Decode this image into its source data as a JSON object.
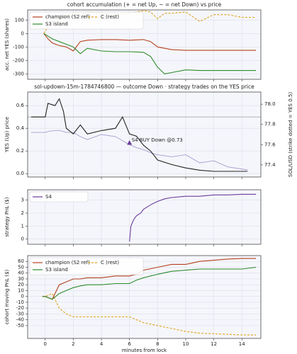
{
  "chart_data": [
    {
      "type": "line",
      "title": "cohort accumulation (+ = net Up, − = net Down) vs price",
      "ylabel": "acc. net YES (shares)",
      "x": [
        -0.1,
        0.2,
        0.5,
        1,
        1.5,
        2,
        2.5,
        3,
        4,
        5,
        6,
        7,
        7.5,
        8,
        8.5,
        9,
        10,
        11,
        12,
        13,
        14,
        15
      ],
      "series": [
        {
          "name": "champion (S2 ref)",
          "color": "#b5401f",
          "linestyle": "solid",
          "values": [
            0,
            -40,
            -70,
            -90,
            -100,
            -130,
            -60,
            -50,
            -45,
            -45,
            -50,
            -45,
            -60,
            -100,
            -110,
            -120,
            -125,
            -125,
            -125,
            -125,
            -125,
            -125
          ]
        },
        {
          "name": "C (rest)",
          "color": "#e0a21a",
          "linestyle": "dashed",
          "values": [
            0,
            50,
            90,
            110,
            130,
            150,
            140,
            160,
            150,
            140,
            150,
            170,
            160,
            110,
            150,
            150,
            160,
            90,
            140,
            140,
            120,
            120
          ]
        },
        {
          "name": "S3 island",
          "color": "#2e8b2e",
          "linestyle": "solid",
          "values": [
            0,
            -20,
            -40,
            -60,
            -80,
            -100,
            -150,
            -110,
            -130,
            -135,
            -135,
            -140,
            -170,
            -250,
            -300,
            -290,
            -270,
            -275,
            -275,
            -275,
            -275,
            -275
          ]
        }
      ],
      "xlim": [
        -1.25,
        15.35
      ],
      "xticks": [
        0,
        2,
        4,
        6,
        8,
        10,
        12,
        14
      ],
      "ylim": [
        -340,
        175
      ],
      "yticks": [
        -300,
        -200,
        -100,
        0,
        100
      ],
      "grid": true,
      "legend": "upper left"
    },
    {
      "type": "line",
      "title": "sol-updown-15m-1784746800 — outcome Down · strategy trades on the YES price",
      "ylabel": "YES (Up) price",
      "y2label": "SOL/USD (strike dotted = YES 0.5)",
      "x": [
        -1,
        0,
        0.2,
        0.7,
        1,
        1.3,
        1.5,
        2,
        2.5,
        3,
        4,
        5,
        5.5,
        6,
        6.5,
        7,
        7.5,
        8,
        9,
        10,
        11,
        12,
        13,
        14.4
      ],
      "series": [
        {
          "name": "YES price",
          "color": "#222222",
          "linestyle": "solid",
          "values": [
            0.5,
            0.5,
            0.62,
            0.6,
            0.66,
            0.55,
            0.4,
            0.35,
            0.43,
            0.35,
            0.38,
            0.4,
            0.5,
            0.35,
            0.33,
            0.25,
            0.2,
            0.12,
            0.08,
            0.05,
            0.03,
            0.02,
            0.02,
            0.02
          ]
        },
        {
          "name": "SOL/USD",
          "color": "#a99bd0",
          "linestyle": "solid",
          "axis": "y2",
          "values": [
            77.72,
            77.72,
            77.73,
            77.74,
            77.74,
            77.73,
            77.72,
            77.72,
            77.68,
            77.65,
            77.7,
            77.68,
            77.64,
            77.6,
            77.57,
            77.55,
            77.52,
            77.5,
            77.48,
            77.5,
            77.42,
            77.44,
            77.38,
            77.35
          ]
        }
      ],
      "reference_line": 0.5,
      "annotation": {
        "text": "S4 BUY Down @0.73",
        "x": 6,
        "y": 0.27,
        "color": "#6a3d9a"
      },
      "xlim": [
        -1.25,
        15.35
      ],
      "xticks": [
        0,
        2,
        4,
        6,
        8,
        10,
        12,
        14
      ],
      "ylim": [
        -0.03,
        0.72
      ],
      "yticks": [
        0.0,
        0.2,
        0.4,
        0.6
      ],
      "y2lim": [
        77.28,
        78.12
      ],
      "y2ticks": [
        77.4,
        77.6,
        77.8,
        78.0
      ],
      "grid": true
    },
    {
      "type": "line",
      "ylabel": "strategy PnL ($)",
      "x": [
        6,
        6.1,
        6.3,
        6.5,
        6.8,
        7,
        7.3,
        7.6,
        8,
        8.5,
        9,
        10,
        11,
        12,
        13,
        14,
        15
      ],
      "series": [
        {
          "name": "S4",
          "color": "#6a3d9a",
          "linestyle": "solid",
          "values": [
            -0.2,
            1,
            1.5,
            1.8,
            2.0,
            2.3,
            2.5,
            2.7,
            2.9,
            3.1,
            3.2,
            3.3,
            3.3,
            3.4,
            3.4,
            3.45,
            3.45
          ]
        }
      ],
      "xlim": [
        -1.25,
        15.35
      ],
      "xticks": [
        0,
        2,
        4,
        6,
        8,
        10,
        12,
        14
      ],
      "ylim": [
        -0.4,
        3.8
      ],
      "yticks": [
        0,
        1,
        2,
        3
      ],
      "grid": true,
      "legend": "upper left"
    },
    {
      "type": "line",
      "ylabel": "cohort moving PnL ($)",
      "xlabel": "minutes from lock",
      "x": [
        -0.2,
        0,
        0.5,
        1,
        1.5,
        2,
        2.5,
        3,
        4,
        5,
        6,
        6.5,
        7,
        8,
        9,
        10,
        11,
        12,
        13,
        14,
        15
      ],
      "series": [
        {
          "name": "champion (S2 ref)",
          "color": "#b5401f",
          "linestyle": "solid",
          "values": [
            0,
            0,
            -5,
            20,
            25,
            30,
            30,
            32,
            32,
            35,
            35,
            38,
            45,
            50,
            55,
            55,
            60,
            62,
            64,
            65,
            65
          ]
        },
        {
          "name": "C (rest)",
          "color": "#e0a21a",
          "linestyle": "dashed",
          "values": [
            0,
            0,
            5,
            -20,
            -30,
            -35,
            -35,
            -35,
            -35,
            -35,
            -35,
            -40,
            -45,
            -50,
            -55,
            -60,
            -63,
            -64,
            -65,
            -66,
            -66
          ]
        },
        {
          "name": "S3 island",
          "color": "#2e8b2e",
          "linestyle": "solid",
          "values": [
            0,
            0,
            -5,
            5,
            10,
            15,
            18,
            20,
            20,
            22,
            22,
            28,
            32,
            38,
            43,
            45,
            47,
            47,
            47,
            47,
            50
          ]
        }
      ],
      "xlim": [
        -1.25,
        15.35
      ],
      "xticks": [
        0,
        2,
        4,
        6,
        8,
        10,
        12,
        14
      ],
      "ylim": [
        -72,
        70
      ],
      "yticks": [
        -50,
        -40,
        -30,
        -20,
        -10,
        0,
        10,
        20,
        30,
        40,
        50,
        60
      ],
      "grid": true,
      "legend": "upper left"
    }
  ]
}
